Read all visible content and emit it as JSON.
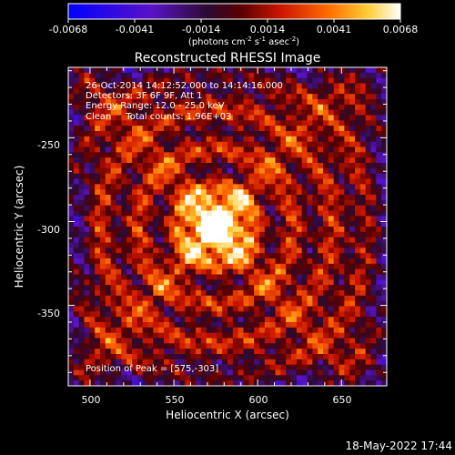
{
  "colorbar": {
    "ticks": [
      "-0.0068",
      "-0.0041",
      "-0.0014",
      "0.0014",
      "0.0041",
      "0.0068"
    ],
    "units": "(photons cm",
    "units_exp1": "-2",
    "units_mid": " s",
    "units_exp2": "-1",
    "units_tail": " asec",
    "units_exp3": "-2",
    "units_close": ")"
  },
  "title": "Reconstructed RHESSI Image",
  "info": {
    "line1": "26-Oct-2014 14:12:52.000 to 14:14:16.000",
    "line2": "Detectors: 3F 6F 9F, Att 1",
    "line3": "Energy Range: 12.0 - 25.0 keV",
    "line4": "Clean     Total counts: 1.96E+03",
    "peak": "Position of Peak = [575,-303]"
  },
  "axes": {
    "xlabel": "Heliocentric X (arcsec)",
    "ylabel": "Heliocentric Y (arcsec)",
    "xticks": [
      "500",
      "550",
      "600",
      "650"
    ],
    "yticks": [
      "-250",
      "-300",
      "-350"
    ]
  },
  "footer": {
    "timestamp": "18-May-2022 17:44"
  },
  "chart_data": {
    "type": "heatmap",
    "title": "Reconstructed RHESSI Image",
    "xlabel": "Heliocentric X (arcsec)",
    "ylabel": "Heliocentric Y (arcsec)",
    "xlim": [
      487,
      677
    ],
    "ylim": [
      -398,
      -208
    ],
    "color_range": [
      -0.0068,
      0.0068
    ],
    "peak": [
      575,
      -303
    ]
  }
}
